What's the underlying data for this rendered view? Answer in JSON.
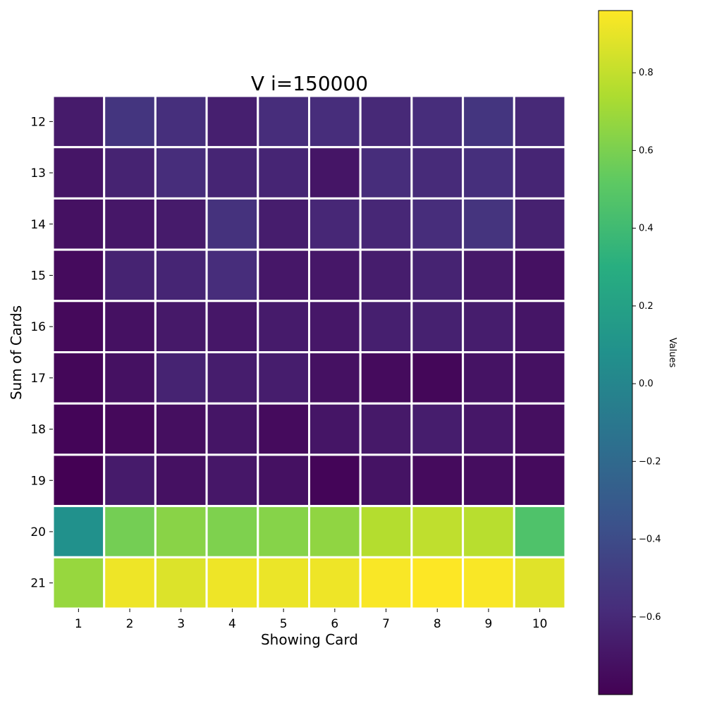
{
  "chart_data": {
    "type": "heatmap",
    "title": "V i=150000",
    "xlabel": "Showing Card",
    "ylabel": "Sum of Cards",
    "x_categories": [
      "1",
      "2",
      "3",
      "4",
      "5",
      "6",
      "7",
      "8",
      "9",
      "10"
    ],
    "y_categories": [
      "12",
      "13",
      "14",
      "15",
      "16",
      "17",
      "18",
      "19",
      "20",
      "21"
    ],
    "values": [
      [
        -0.67,
        -0.53,
        -0.57,
        -0.65,
        -0.58,
        -0.58,
        -0.6,
        -0.58,
        -0.53,
        -0.6
      ],
      [
        -0.7,
        -0.63,
        -0.58,
        -0.62,
        -0.62,
        -0.7,
        -0.58,
        -0.59,
        -0.57,
        -0.62
      ],
      [
        -0.72,
        -0.69,
        -0.67,
        -0.55,
        -0.66,
        -0.61,
        -0.61,
        -0.58,
        -0.54,
        -0.64
      ],
      [
        -0.75,
        -0.63,
        -0.62,
        -0.58,
        -0.69,
        -0.69,
        -0.66,
        -0.63,
        -0.68,
        -0.72
      ],
      [
        -0.76,
        -0.72,
        -0.68,
        -0.69,
        -0.67,
        -0.69,
        -0.65,
        -0.64,
        -0.66,
        -0.7
      ],
      [
        -0.77,
        -0.72,
        -0.63,
        -0.66,
        -0.66,
        -0.72,
        -0.75,
        -0.77,
        -0.71,
        -0.72
      ],
      [
        -0.78,
        -0.76,
        -0.73,
        -0.7,
        -0.75,
        -0.7,
        -0.68,
        -0.66,
        -0.69,
        -0.73
      ],
      [
        -0.8,
        -0.67,
        -0.72,
        -0.69,
        -0.72,
        -0.78,
        -0.71,
        -0.75,
        -0.74,
        -0.75
      ],
      [
        0.08,
        0.58,
        0.64,
        0.61,
        0.63,
        0.66,
        0.76,
        0.79,
        0.77,
        0.46
      ],
      [
        0.68,
        0.92,
        0.87,
        0.92,
        0.91,
        0.92,
        0.95,
        0.96,
        0.95,
        0.88
      ]
    ],
    "colorbar": {
      "label": "Values",
      "min": -0.8,
      "max": 0.96,
      "ticks": [
        -0.6,
        -0.4,
        -0.2,
        0.0,
        0.2,
        0.4,
        0.6,
        0.8
      ],
      "tick_labels": [
        "−0.6",
        "−0.4",
        "−0.2",
        "0.0",
        "0.2",
        "0.4",
        "0.6",
        "0.8"
      ],
      "colormap": "viridis"
    },
    "cell_border_color": "#ffffff",
    "grid": false
  }
}
